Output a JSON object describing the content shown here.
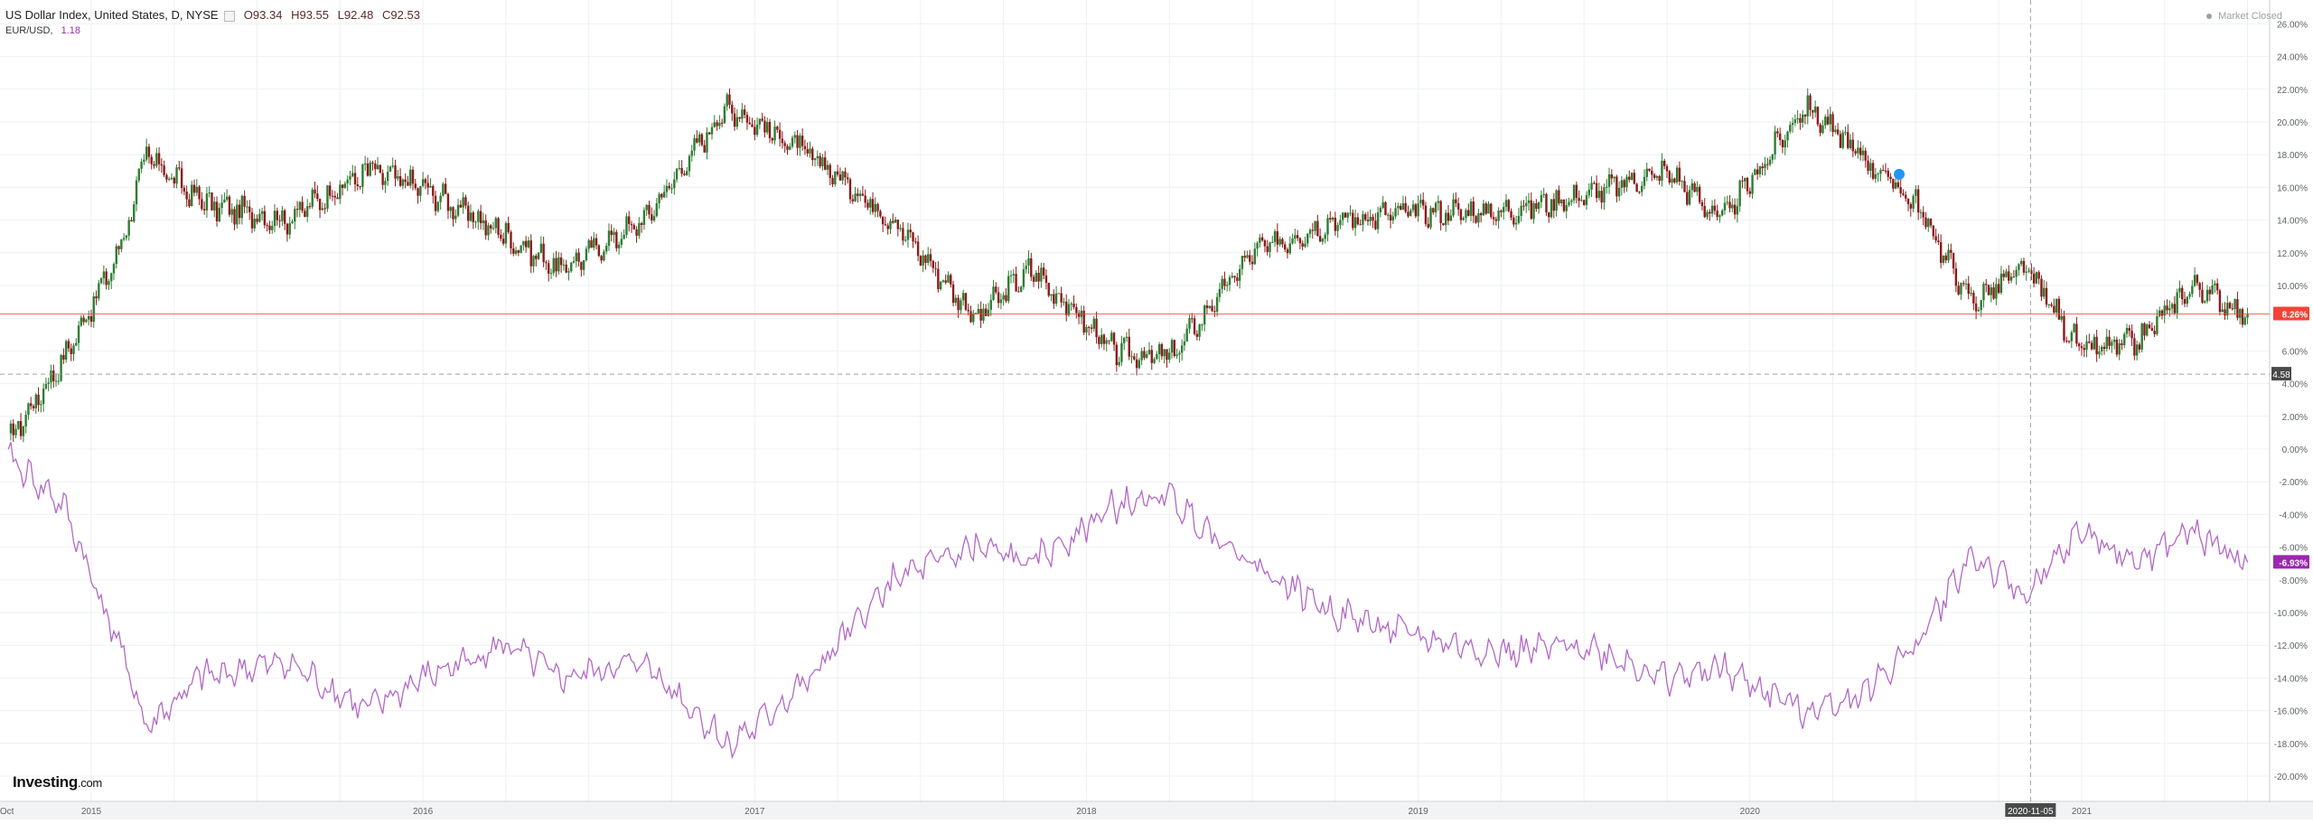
{
  "legend": {
    "title": "US Dollar Index, United States, D, NYSE",
    "open": "O93.34",
    "high": "H93.55",
    "low": "L92.48",
    "close": "C92.53",
    "compare_symbol": "EUR/USD,",
    "compare_value": "1.18"
  },
  "status": {
    "text": "Market Closed"
  },
  "logo": {
    "text": "Investing",
    "suffix": ".com"
  },
  "colors": {
    "up_candle": "#2e7d32",
    "down_candle": "#8b1a1a",
    "compare_line": "#b268c6",
    "current_price_line": "#f44336",
    "accent_purple": "#9c27b0",
    "badge_dark": "#4a4a4a"
  },
  "chart_data": {
    "type": "line",
    "title": "US Dollar Index, United States, D, NYSE",
    "xlabel": "",
    "ylabel": "",
    "x": [
      "2014-10",
      "2014-12",
      "2015-02",
      "2015-03",
      "2015-05",
      "2015-08",
      "2015-11",
      "2016-01",
      "2016-04",
      "2016-06",
      "2016-09",
      "2016-12",
      "2017-01",
      "2017-03",
      "2017-06",
      "2017-09",
      "2017-11",
      "2018-02",
      "2018-04",
      "2018-07",
      "2018-10",
      "2019-01",
      "2019-04",
      "2019-07",
      "2019-10",
      "2019-12",
      "2020-03",
      "2020-05",
      "2020-07",
      "2020-09",
      "2020-11",
      "2021-01",
      "2021-03",
      "2021-05",
      "2021-07"
    ],
    "series": [
      {
        "name": "US Dollar Index",
        "values": [
          0.5,
          5.5,
          12,
          18,
          15,
          14,
          17,
          16,
          13,
          11,
          14,
          21,
          20,
          18,
          14,
          8,
          11,
          6,
          5.5,
          12,
          14,
          14.5,
          14.5,
          15.5,
          17,
          14,
          21,
          18,
          15,
          9,
          11,
          6,
          6.5,
          10,
          8.26
        ]
      },
      {
        "name": "EUR/USD",
        "values": [
          -0.5,
          -3.5,
          -12,
          -17,
          -14,
          -13,
          -16,
          -14,
          -12,
          -14,
          -13,
          -18,
          -17,
          -14,
          -8,
          -6,
          -7,
          -3.5,
          -3,
          -7,
          -10,
          -11.5,
          -12.5,
          -12,
          -14,
          -13.5,
          -16,
          -15,
          -12,
          -6.5,
          -9,
          -5,
          -7,
          -5,
          -6.93
        ]
      }
    ],
    "x_tick_labels": [
      "Oct",
      "2015",
      "2016",
      "2017",
      "2018",
      "2019",
      "2020",
      "2020-11-05",
      "2021"
    ],
    "y_tick_labels": [
      "26.00%",
      "24.00%",
      "22.00%",
      "20.00%",
      "18.00%",
      "16.00%",
      "14.00%",
      "12.00%",
      "10.00%",
      "8.26%",
      "6.00%",
      "4.00%",
      "2.00%",
      "0.00%",
      "-2.00%",
      "-4.00%",
      "-6.00%",
      "-6.93%",
      "-8.00%",
      "-10.00%",
      "-12.00%",
      "-14.00%",
      "-16.00%",
      "-18.00%",
      "-20.00%"
    ],
    "ylim": [
      -20,
      26
    ],
    "y_unit": "%",
    "current_value_label": "8.26%",
    "compare_value_label": "-6.93%",
    "reference_line_label": "4.58",
    "reference_line_value": 4.58,
    "crosshair_date_label": "2020-11-05",
    "grid": true,
    "legend_position": "top-left"
  }
}
